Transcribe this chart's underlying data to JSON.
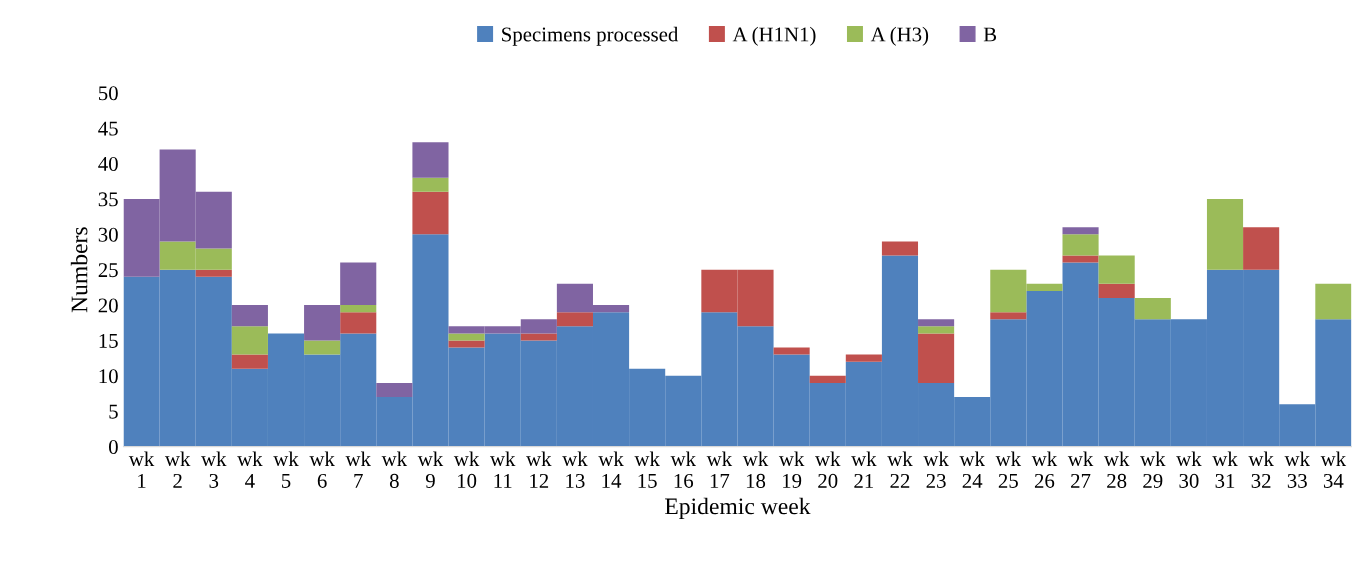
{
  "chart_data": {
    "type": "bar",
    "stacked": true,
    "xlabel": "Epidemic week",
    "ylabel": "Numbers",
    "categories": [
      "wk\n1",
      "wk\n2",
      "wk\n3",
      "wk\n4",
      "wk\n5",
      "wk\n6",
      "wk\n7",
      "wk\n8",
      "wk\n9",
      "wk\n10",
      "wk\n11",
      "wk\n12",
      "wk\n13",
      "wk\n14",
      "wk\n15",
      "wk\n16",
      "wk\n17",
      "wk\n18",
      "wk\n19",
      "wk\n20",
      "wk\n21",
      "wk\n22",
      "wk\n23",
      "wk\n24",
      "wk\n25",
      "wk\n26",
      "wk\n27",
      "wk\n28",
      "wk\n29",
      "wk\n30",
      "wk\n31",
      "wk\n32",
      "wk\n33",
      "wk\n34"
    ],
    "series": [
      {
        "name": "Specimens processed",
        "color": "#4f81bd",
        "values": [
          24,
          25,
          24,
          11,
          16,
          13,
          16,
          7,
          30,
          14,
          16,
          15,
          17,
          19,
          11,
          10,
          19,
          17,
          13,
          9,
          12,
          27,
          9,
          7,
          18,
          22,
          26,
          21,
          18,
          18,
          25,
          25,
          6,
          18
        ]
      },
      {
        "name": "A (H1N1)",
        "color": "#c0504d",
        "values": [
          0,
          0,
          1,
          2,
          0,
          0,
          3,
          0,
          6,
          1,
          0,
          1,
          2,
          0,
          0,
          0,
          6,
          8,
          1,
          1,
          1,
          2,
          7,
          0,
          1,
          0,
          1,
          2,
          0,
          0,
          0,
          6,
          0,
          0
        ]
      },
      {
        "name": "A (H3)",
        "color": "#9bbb59",
        "values": [
          0,
          4,
          3,
          4,
          0,
          2,
          1,
          0,
          2,
          1,
          0,
          0,
          0,
          0,
          0,
          0,
          0,
          0,
          0,
          0,
          0,
          0,
          1,
          0,
          6,
          1,
          3,
          4,
          3,
          0,
          10,
          0,
          0,
          5
        ]
      },
      {
        "name": "B",
        "color": "#8064a2",
        "values": [
          11,
          13,
          8,
          3,
          0,
          5,
          6,
          2,
          5,
          1,
          1,
          2,
          4,
          1,
          0,
          0,
          0,
          0,
          0,
          0,
          0,
          0,
          1,
          0,
          0,
          0,
          1,
          0,
          0,
          0,
          0,
          0,
          0,
          0
        ]
      }
    ],
    "ylim": [
      0,
      50
    ],
    "yticks": [
      0,
      5,
      10,
      15,
      20,
      25,
      30,
      35,
      40,
      45,
      50
    ],
    "grid": false,
    "legend": "top"
  }
}
